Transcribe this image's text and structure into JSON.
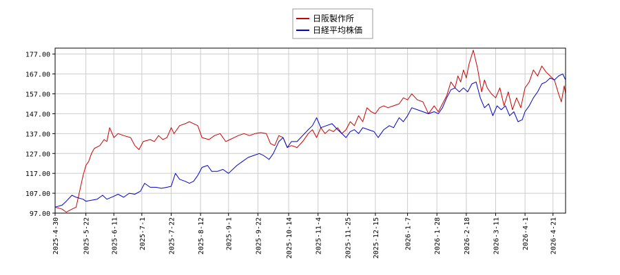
{
  "chart_data": {
    "type": "line",
    "title": "",
    "xlabel": "",
    "ylabel": "",
    "ylim": [
      97,
      180
    ],
    "yticks": [
      "97.00",
      "107.00",
      "117.00",
      "127.00",
      "137.00",
      "147.00",
      "157.00",
      "167.00",
      "177.00"
    ],
    "xrange": [
      "2025-04-30",
      "2026-04-30"
    ],
    "xticks": [
      "2025-4-30",
      "2025-5-22",
      "2025-6-11",
      "2025-7-1",
      "2025-7-22",
      "2025-8-12",
      "2025-9-1",
      "2025-9-22",
      "2025-10-14",
      "2025-11-4",
      "2025-11-25",
      "2025-12-15",
      "2026-1-7",
      "2026-1-28",
      "2026-2-18",
      "2026-3-11",
      "2026-4-1",
      "2026-4-21"
    ],
    "grid": true,
    "legend_position": "top-center",
    "series": [
      {
        "name": "日阪製作所",
        "color": "#cc0000",
        "points": [
          [
            "2025-04-30",
            100.0
          ],
          [
            "2025-05-05",
            99.0
          ],
          [
            "2025-05-08",
            97.5
          ],
          [
            "2025-05-12",
            99.0
          ],
          [
            "2025-05-15",
            100.0
          ],
          [
            "2025-05-20",
            116.0
          ],
          [
            "2025-05-22",
            121.0
          ],
          [
            "2025-05-24",
            123.0
          ],
          [
            "2025-05-26",
            127.0
          ],
          [
            "2025-05-28",
            129.5
          ],
          [
            "2025-06-01",
            131.0
          ],
          [
            "2025-06-04",
            134.0
          ],
          [
            "2025-06-06",
            133.0
          ],
          [
            "2025-06-08",
            140.0
          ],
          [
            "2025-06-11",
            135.0
          ],
          [
            "2025-06-14",
            137.0
          ],
          [
            "2025-06-18",
            136.0
          ],
          [
            "2025-06-23",
            135.0
          ],
          [
            "2025-06-26",
            131.0
          ],
          [
            "2025-06-29",
            129.0
          ],
          [
            "2025-07-02",
            133.0
          ],
          [
            "2025-07-07",
            134.0
          ],
          [
            "2025-07-10",
            133.0
          ],
          [
            "2025-07-13",
            136.0
          ],
          [
            "2025-07-16",
            134.0
          ],
          [
            "2025-07-19",
            135.0
          ],
          [
            "2025-07-22",
            140.0
          ],
          [
            "2025-07-24",
            137.0
          ],
          [
            "2025-07-28",
            141.0
          ],
          [
            "2025-08-01",
            142.0
          ],
          [
            "2025-08-04",
            143.0
          ],
          [
            "2025-08-07",
            142.0
          ],
          [
            "2025-08-10",
            141.0
          ],
          [
            "2025-08-13",
            135.0
          ],
          [
            "2025-08-18",
            134.0
          ],
          [
            "2025-08-22",
            136.0
          ],
          [
            "2025-08-26",
            137.0
          ],
          [
            "2025-08-30",
            133.0
          ],
          [
            "2025-09-02",
            134.0
          ],
          [
            "2025-09-05",
            135.0
          ],
          [
            "2025-09-08",
            136.0
          ],
          [
            "2025-09-12",
            137.0
          ],
          [
            "2025-09-16",
            136.0
          ],
          [
            "2025-09-20",
            137.0
          ],
          [
            "2025-09-24",
            137.5
          ],
          [
            "2025-09-28",
            137.0
          ],
          [
            "2025-10-01",
            132.0
          ],
          [
            "2025-10-04",
            131.0
          ],
          [
            "2025-10-07",
            136.0
          ],
          [
            "2025-10-10",
            135.0
          ],
          [
            "2025-10-13",
            130.0
          ],
          [
            "2025-10-16",
            131.0
          ],
          [
            "2025-10-20",
            130.0
          ],
          [
            "2025-10-24",
            133.0
          ],
          [
            "2025-10-28",
            137.0
          ],
          [
            "2025-10-31",
            139.0
          ],
          [
            "2025-11-03",
            135.0
          ],
          [
            "2025-11-06",
            140.0
          ],
          [
            "2025-11-09",
            137.0
          ],
          [
            "2025-11-12",
            139.0
          ],
          [
            "2025-11-15",
            138.0
          ],
          [
            "2025-11-18",
            140.0
          ],
          [
            "2025-11-21",
            137.0
          ],
          [
            "2025-11-24",
            139.0
          ],
          [
            "2025-11-27",
            143.0
          ],
          [
            "2025-11-30",
            141.0
          ],
          [
            "2025-12-03",
            146.0
          ],
          [
            "2025-12-06",
            143.0
          ],
          [
            "2025-12-09",
            150.0
          ],
          [
            "2025-12-12",
            148.0
          ],
          [
            "2025-12-15",
            147.0
          ],
          [
            "2025-12-18",
            150.0
          ],
          [
            "2025-12-21",
            151.0
          ],
          [
            "2025-12-24",
            150.0
          ],
          [
            "2025-12-28",
            151.0
          ],
          [
            "2026-01-01",
            152.0
          ],
          [
            "2026-01-04",
            155.0
          ],
          [
            "2026-01-07",
            154.0
          ],
          [
            "2026-01-10",
            157.0
          ],
          [
            "2026-01-14",
            154.0
          ],
          [
            "2026-01-18",
            153.0
          ],
          [
            "2026-01-22",
            147.0
          ],
          [
            "2026-01-26",
            151.0
          ],
          [
            "2026-01-29",
            148.0
          ],
          [
            "2026-02-01",
            152.0
          ],
          [
            "2026-02-04",
            156.0
          ],
          [
            "2026-02-07",
            163.0
          ],
          [
            "2026-02-10",
            160.0
          ],
          [
            "2026-02-12",
            166.0
          ],
          [
            "2026-02-14",
            163.0
          ],
          [
            "2026-02-16",
            169.0
          ],
          [
            "2026-02-18",
            165.0
          ],
          [
            "2026-02-20",
            172.0
          ],
          [
            "2026-02-23",
            179.0
          ],
          [
            "2026-02-26",
            170.0
          ],
          [
            "2026-03-01",
            158.0
          ],
          [
            "2026-03-03",
            164.0
          ],
          [
            "2026-03-05",
            160.0
          ],
          [
            "2026-03-08",
            157.0
          ],
          [
            "2026-03-11",
            155.0
          ],
          [
            "2026-03-14",
            160.0
          ],
          [
            "2026-03-17",
            151.0
          ],
          [
            "2026-03-20",
            158.0
          ],
          [
            "2026-03-23",
            149.0
          ],
          [
            "2026-03-26",
            155.0
          ],
          [
            "2026-03-29",
            150.0
          ],
          [
            "2026-04-01",
            160.0
          ],
          [
            "2026-04-04",
            163.0
          ],
          [
            "2026-04-07",
            169.0
          ],
          [
            "2026-04-10",
            166.0
          ],
          [
            "2026-04-13",
            171.0
          ],
          [
            "2026-04-16",
            168.0
          ],
          [
            "2026-04-19",
            166.0
          ],
          [
            "2026-04-22",
            164.0
          ],
          [
            "2026-04-25",
            157.0
          ],
          [
            "2026-04-27",
            153.0
          ],
          [
            "2026-04-29",
            161.0
          ],
          [
            "2026-04-30",
            157.0
          ]
        ]
      },
      {
        "name": "日経平均株価",
        "color": "#0000cc",
        "points": [
          [
            "2025-04-30",
            100.0
          ],
          [
            "2025-05-05",
            101.0
          ],
          [
            "2025-05-08",
            103.0
          ],
          [
            "2025-05-12",
            106.0
          ],
          [
            "2025-05-15",
            105.0
          ],
          [
            "2025-05-20",
            104.0
          ],
          [
            "2025-05-22",
            103.0
          ],
          [
            "2025-05-26",
            103.5
          ],
          [
            "2025-05-30",
            104.0
          ],
          [
            "2025-06-03",
            106.0
          ],
          [
            "2025-06-06",
            104.0
          ],
          [
            "2025-06-11",
            105.5
          ],
          [
            "2025-06-14",
            106.5
          ],
          [
            "2025-06-18",
            105.0
          ],
          [
            "2025-06-22",
            107.0
          ],
          [
            "2025-06-26",
            106.5
          ],
          [
            "2025-06-30",
            108.0
          ],
          [
            "2025-07-03",
            112.0
          ],
          [
            "2025-07-07",
            110.0
          ],
          [
            "2025-07-11",
            110.0
          ],
          [
            "2025-07-15",
            109.5
          ],
          [
            "2025-07-19",
            110.0
          ],
          [
            "2025-07-22",
            110.5
          ],
          [
            "2025-07-25",
            117.0
          ],
          [
            "2025-07-28",
            114.0
          ],
          [
            "2025-08-01",
            113.0
          ],
          [
            "2025-08-04",
            112.0
          ],
          [
            "2025-08-07",
            113.0
          ],
          [
            "2025-08-10",
            116.0
          ],
          [
            "2025-08-13",
            120.0
          ],
          [
            "2025-08-17",
            121.0
          ],
          [
            "2025-08-20",
            118.0
          ],
          [
            "2025-08-24",
            118.0
          ],
          [
            "2025-08-28",
            119.0
          ],
          [
            "2025-09-01",
            117.0
          ],
          [
            "2025-09-04",
            119.0
          ],
          [
            "2025-09-07",
            121.0
          ],
          [
            "2025-09-11",
            123.0
          ],
          [
            "2025-09-15",
            125.0
          ],
          [
            "2025-09-19",
            126.0
          ],
          [
            "2025-09-23",
            127.0
          ],
          [
            "2025-09-26",
            126.0
          ],
          [
            "2025-09-30",
            124.0
          ],
          [
            "2025-10-03",
            127.0
          ],
          [
            "2025-10-07",
            133.0
          ],
          [
            "2025-10-10",
            135.0
          ],
          [
            "2025-10-13",
            130.0
          ],
          [
            "2025-10-16",
            133.0
          ],
          [
            "2025-10-20",
            133.0
          ],
          [
            "2025-10-24",
            136.0
          ],
          [
            "2025-10-28",
            139.0
          ],
          [
            "2025-10-31",
            141.0
          ],
          [
            "2025-11-03",
            145.0
          ],
          [
            "2025-11-06",
            140.0
          ],
          [
            "2025-11-10",
            141.0
          ],
          [
            "2025-11-14",
            142.0
          ],
          [
            "2025-11-18",
            139.0
          ],
          [
            "2025-11-21",
            137.0
          ],
          [
            "2025-11-24",
            135.0
          ],
          [
            "2025-11-27",
            138.0
          ],
          [
            "2025-11-30",
            139.0
          ],
          [
            "2025-12-03",
            137.0
          ],
          [
            "2025-12-06",
            140.0
          ],
          [
            "2025-12-10",
            139.0
          ],
          [
            "2025-12-14",
            138.0
          ],
          [
            "2025-12-17",
            135.0
          ],
          [
            "2025-12-21",
            139.0
          ],
          [
            "2025-12-25",
            141.0
          ],
          [
            "2025-12-28",
            140.0
          ],
          [
            "2026-01-01",
            145.0
          ],
          [
            "2026-01-04",
            143.0
          ],
          [
            "2026-01-07",
            146.0
          ],
          [
            "2026-01-10",
            150.0
          ],
          [
            "2026-01-14",
            149.0
          ],
          [
            "2026-01-18",
            148.0
          ],
          [
            "2026-01-22",
            147.0
          ],
          [
            "2026-01-26",
            148.0
          ],
          [
            "2026-01-29",
            147.0
          ],
          [
            "2026-02-01",
            150.0
          ],
          [
            "2026-02-04",
            155.0
          ],
          [
            "2026-02-07",
            159.0
          ],
          [
            "2026-02-10",
            160.0
          ],
          [
            "2026-02-13",
            158.0
          ],
          [
            "2026-02-16",
            160.0
          ],
          [
            "2026-02-19",
            158.0
          ],
          [
            "2026-02-22",
            162.0
          ],
          [
            "2026-02-25",
            163.0
          ],
          [
            "2026-02-28",
            155.0
          ],
          [
            "2026-03-03",
            150.0
          ],
          [
            "2026-03-06",
            152.0
          ],
          [
            "2026-03-09",
            146.0
          ],
          [
            "2026-03-12",
            151.0
          ],
          [
            "2026-03-15",
            149.0
          ],
          [
            "2026-03-18",
            151.0
          ],
          [
            "2026-03-21",
            146.0
          ],
          [
            "2026-03-24",
            148.0
          ],
          [
            "2026-03-27",
            143.0
          ],
          [
            "2026-03-30",
            144.0
          ],
          [
            "2026-04-01",
            148.0
          ],
          [
            "2026-04-04",
            151.0
          ],
          [
            "2026-04-07",
            155.0
          ],
          [
            "2026-04-10",
            158.0
          ],
          [
            "2026-04-13",
            162.0
          ],
          [
            "2026-04-16",
            163.0
          ],
          [
            "2026-04-19",
            165.0
          ],
          [
            "2026-04-22",
            164.0
          ],
          [
            "2026-04-25",
            166.0
          ],
          [
            "2026-04-28",
            167.0
          ],
          [
            "2026-04-30",
            164.0
          ]
        ]
      }
    ]
  }
}
